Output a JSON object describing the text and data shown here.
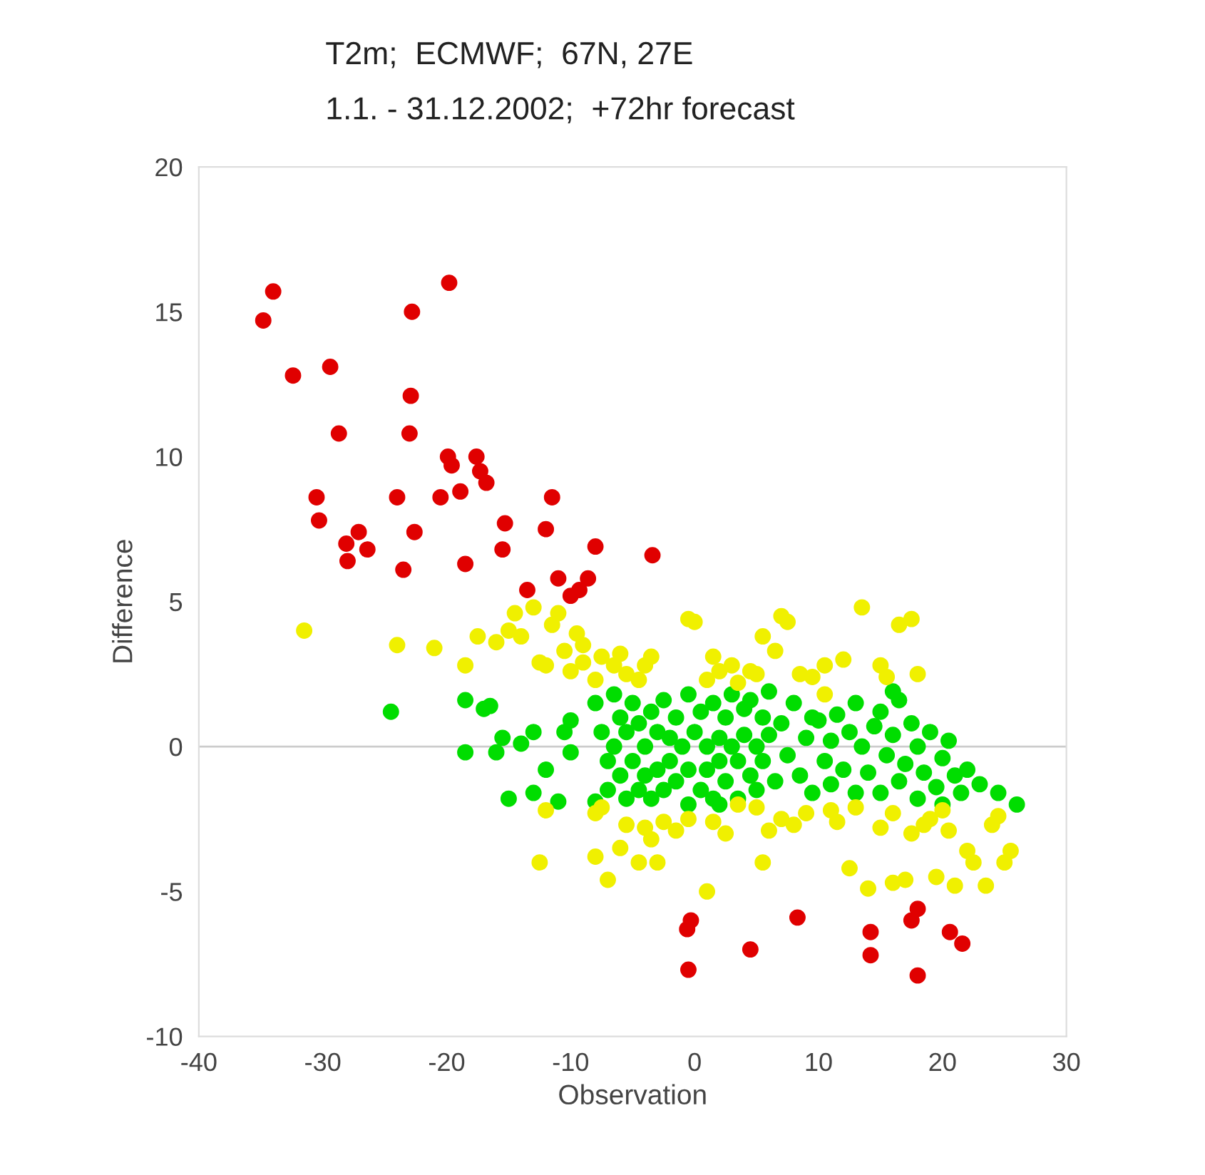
{
  "chart_data": {
    "type": "scatter",
    "title": "T2m;  ECMWF;  67N, 27E",
    "subtitle": "1.1. - 31.12.2002;  +72hr forecast",
    "xlabel": "Observation",
    "ylabel": "Difference",
    "xlim": [
      -40,
      30
    ],
    "xticks": [
      -40,
      -30,
      -20,
      -10,
      0,
      10,
      20,
      30
    ],
    "ylim": [
      -10,
      20
    ],
    "yticks": [
      -10,
      -5,
      0,
      5,
      10,
      15,
      20
    ],
    "grid": false,
    "legend": false,
    "marker": "circle",
    "ref_lines": [
      {
        "axis": "y",
        "value": 0,
        "color": "#cccccc"
      }
    ],
    "series": [
      {
        "color": "#00dd00",
        "x": [
          -24.5,
          -18.5,
          -17,
          -16.5,
          -15.5,
          -14,
          -13,
          -12,
          -11,
          -10,
          -18.5,
          -16,
          -15,
          -13,
          -10.5,
          -10,
          -8,
          -7.5,
          -7,
          -7,
          -6.5,
          -6.5,
          -6,
          -6,
          -5.5,
          -5.5,
          -5,
          -5,
          -4.5,
          -4.5,
          -4,
          -4,
          -3.5,
          -3.5,
          -3,
          -3,
          -2.5,
          -2.5,
          -2,
          -2,
          -1.5,
          -1.5,
          -1,
          -0.5,
          -0.5,
          0,
          0.5,
          0.5,
          1,
          1,
          1.5,
          1.5,
          2,
          2,
          2.5,
          2.5,
          3,
          3,
          3.5,
          3.5,
          4,
          4,
          4.5,
          4.5,
          5,
          5,
          5.5,
          5.5,
          6,
          6.5,
          7,
          7.5,
          8,
          8.5,
          9,
          9.5,
          10,
          10.5,
          11,
          11,
          11.5,
          12,
          12.5,
          13,
          13,
          13.5,
          14,
          14.5,
          15,
          15,
          15.5,
          16,
          16.5,
          16.5,
          17,
          17.5,
          18,
          18,
          18.5,
          19,
          19.5,
          20,
          20,
          20.5,
          21,
          21.5,
          22,
          23,
          24.5,
          26,
          -0.5,
          2,
          6,
          9.5,
          16,
          -8
        ],
        "values": [
          1.2,
          1.6,
          1.3,
          1.4,
          0.3,
          0.1,
          0.5,
          -0.8,
          -1.9,
          -0.2,
          -0.2,
          -0.2,
          -1.8,
          -1.6,
          0.5,
          0.9,
          1.5,
          0.5,
          -0.5,
          -1.5,
          1.8,
          0.0,
          -1.0,
          1.0,
          -1.8,
          0.5,
          1.5,
          -0.5,
          -1.5,
          0.8,
          0.0,
          -1.0,
          1.2,
          -1.8,
          0.5,
          -0.8,
          1.6,
          -1.5,
          0.3,
          -0.5,
          1.0,
          -1.2,
          0.0,
          1.8,
          -0.8,
          0.5,
          -1.5,
          1.2,
          0.0,
          -0.8,
          1.5,
          -1.8,
          0.3,
          -0.5,
          1.0,
          -1.2,
          0.0,
          1.8,
          -0.5,
          -1.8,
          1.3,
          0.4,
          -1.0,
          1.6,
          0.0,
          -1.5,
          1.0,
          -0.5,
          0.4,
          -1.2,
          0.8,
          -0.3,
          1.5,
          -1.0,
          0.3,
          -1.6,
          0.9,
          -0.5,
          0.2,
          -1.3,
          1.1,
          -0.8,
          0.5,
          -1.6,
          1.5,
          0.0,
          -0.9,
          0.7,
          -1.6,
          1.2,
          -0.3,
          0.4,
          -1.2,
          1.6,
          -0.6,
          0.8,
          -1.8,
          0.0,
          -0.9,
          0.5,
          -1.4,
          -0.4,
          -2.0,
          0.2,
          -1.0,
          -1.6,
          -0.8,
          -1.3,
          -1.6,
          -2.0,
          -2.0,
          -2.0,
          1.9,
          1.0,
          1.9,
          -1.9
        ]
      },
      {
        "color": "#f0f000",
        "x": [
          -31.5,
          -24,
          -21,
          -18.5,
          -17.5,
          -16,
          -15,
          -14.5,
          -14,
          -13,
          -12.5,
          -12,
          -11.5,
          -11,
          -10.5,
          -10,
          -9.5,
          -9,
          -8,
          -7.5,
          -6.5,
          -6,
          -5.5,
          -4.5,
          -4,
          -3.5,
          -0.5,
          0,
          1,
          1.5,
          2,
          3,
          3.5,
          4.5,
          5,
          5.5,
          6.5,
          7,
          7.5,
          8.5,
          9.5,
          10.5,
          12,
          13.5,
          15,
          15.5,
          16.5,
          17.5,
          18,
          10.5,
          -12,
          -12.5,
          -8,
          -7.5,
          -8,
          -7,
          -6,
          -5.5,
          -4.5,
          -4,
          -3.5,
          -3,
          -2.5,
          -1.5,
          -0.5,
          1,
          1.5,
          2.5,
          3.5,
          5,
          5.5,
          6,
          7,
          8,
          9,
          11,
          11.5,
          13,
          12.5,
          14,
          15,
          16,
          17,
          17.5,
          18.5,
          19,
          20,
          20.5,
          21,
          22,
          22.5,
          23.5,
          24,
          25,
          25.5,
          24.5,
          16,
          19.5,
          -9
        ],
        "values": [
          4.0,
          3.5,
          3.4,
          2.8,
          3.8,
          3.6,
          4.0,
          4.6,
          3.8,
          4.8,
          2.9,
          2.8,
          4.2,
          4.6,
          3.3,
          2.6,
          3.9,
          2.9,
          2.3,
          3.1,
          2.8,
          3.2,
          2.5,
          2.3,
          2.8,
          3.1,
          4.4,
          4.3,
          2.3,
          3.1,
          2.6,
          2.8,
          2.2,
          2.6,
          2.5,
          3.8,
          3.3,
          4.5,
          4.3,
          2.5,
          2.4,
          2.8,
          3.0,
          4.8,
          2.8,
          2.4,
          4.2,
          4.4,
          2.5,
          1.8,
          -2.2,
          -4.0,
          -2.3,
          -2.1,
          -3.8,
          -4.6,
          -3.5,
          -2.7,
          -4.0,
          -2.8,
          -3.2,
          -4.0,
          -2.6,
          -2.9,
          -2.5,
          -5.0,
          -2.6,
          -3.0,
          -2.0,
          -2.1,
          -4.0,
          -2.9,
          -2.5,
          -2.7,
          -2.3,
          -2.2,
          -2.6,
          -2.1,
          -4.2,
          -4.9,
          -2.8,
          -2.3,
          -4.6,
          -3.0,
          -2.7,
          -2.5,
          -2.2,
          -2.9,
          -4.8,
          -3.6,
          -4.0,
          -4.8,
          -2.7,
          -4.0,
          -3.6,
          -2.4,
          -4.7,
          -4.5,
          3.5
        ]
      },
      {
        "color": "#e00000",
        "x": [
          -34.8,
          -34,
          -32.4,
          -29.4,
          -28.7,
          -30.5,
          -30.3,
          -28.1,
          -28,
          -27.1,
          -26.4,
          -24,
          -23.5,
          -23,
          -22.9,
          -22.8,
          -22.6,
          -20.5,
          -19.8,
          -19.9,
          -19.6,
          -18.9,
          -18.5,
          -17.6,
          -17.3,
          -16.8,
          -15.5,
          -15.3,
          -13.5,
          -12,
          -11.5,
          -11,
          -10,
          -9.3,
          -8.6,
          -8,
          -3.4,
          -0.6,
          -0.3,
          -0.5,
          4.5,
          8.3,
          14.2,
          14.2,
          17.5,
          18,
          18,
          20.6,
          21.6
        ],
        "values": [
          14.7,
          15.7,
          12.8,
          13.1,
          10.8,
          8.6,
          7.8,
          7.0,
          6.4,
          7.4,
          6.8,
          8.6,
          6.1,
          10.8,
          12.1,
          15.0,
          7.4,
          8.6,
          16.0,
          10.0,
          9.7,
          8.8,
          6.3,
          10.0,
          9.5,
          9.1,
          6.8,
          7.7,
          5.4,
          7.5,
          8.6,
          5.8,
          5.2,
          5.4,
          5.8,
          6.9,
          6.6,
          -6.3,
          -6.0,
          -7.7,
          -7.0,
          -5.9,
          -6.4,
          -7.2,
          -6.0,
          -5.6,
          -7.9,
          -6.4,
          -6.8
        ]
      }
    ]
  }
}
